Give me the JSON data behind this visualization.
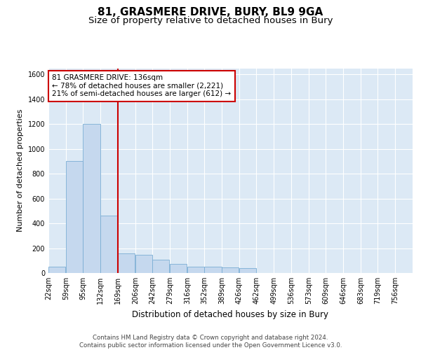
{
  "title": "81, GRASMERE DRIVE, BURY, BL9 9GA",
  "subtitle": "Size of property relative to detached houses in Bury",
  "xlabel": "Distribution of detached houses by size in Bury",
  "ylabel": "Number of detached properties",
  "bar_color": "#c5d8ee",
  "bar_edge_color": "#7aadd4",
  "bg_color": "#dce9f5",
  "grid_color": "#ffffff",
  "vline_color": "#cc0000",
  "categories": [
    "22sqm",
    "59sqm",
    "95sqm",
    "132sqm",
    "169sqm",
    "206sqm",
    "242sqm",
    "279sqm",
    "316sqm",
    "352sqm",
    "389sqm",
    "426sqm",
    "462sqm",
    "499sqm",
    "536sqm",
    "573sqm",
    "609sqm",
    "646sqm",
    "683sqm",
    "719sqm",
    "756sqm"
  ],
  "bin_edges": [
    22,
    59,
    95,
    132,
    169,
    206,
    242,
    279,
    316,
    352,
    389,
    426,
    462,
    499,
    536,
    573,
    609,
    646,
    683,
    719,
    756
  ],
  "bin_width": 37,
  "values": [
    50,
    900,
    1200,
    460,
    160,
    145,
    110,
    75,
    50,
    50,
    45,
    40,
    0,
    0,
    0,
    0,
    0,
    0,
    0,
    0,
    0
  ],
  "vline_x": 132,
  "ylim": [
    0,
    1650
  ],
  "yticks": [
    0,
    200,
    400,
    600,
    800,
    1000,
    1200,
    1400,
    1600
  ],
  "annotation_text": "81 GRASMERE DRIVE: 136sqm\n← 78% of detached houses are smaller (2,221)\n21% of semi-detached houses are larger (612) →",
  "annotation_box_color": "#ffffff",
  "annotation_border_color": "#cc0000",
  "footer_text": "Contains HM Land Registry data © Crown copyright and database right 2024.\nContains public sector information licensed under the Open Government Licence v3.0.",
  "title_fontsize": 11,
  "subtitle_fontsize": 9.5,
  "label_fontsize": 8.5,
  "tick_fontsize": 7,
  "annotation_fontsize": 7.5,
  "ylabel_fontsize": 8
}
